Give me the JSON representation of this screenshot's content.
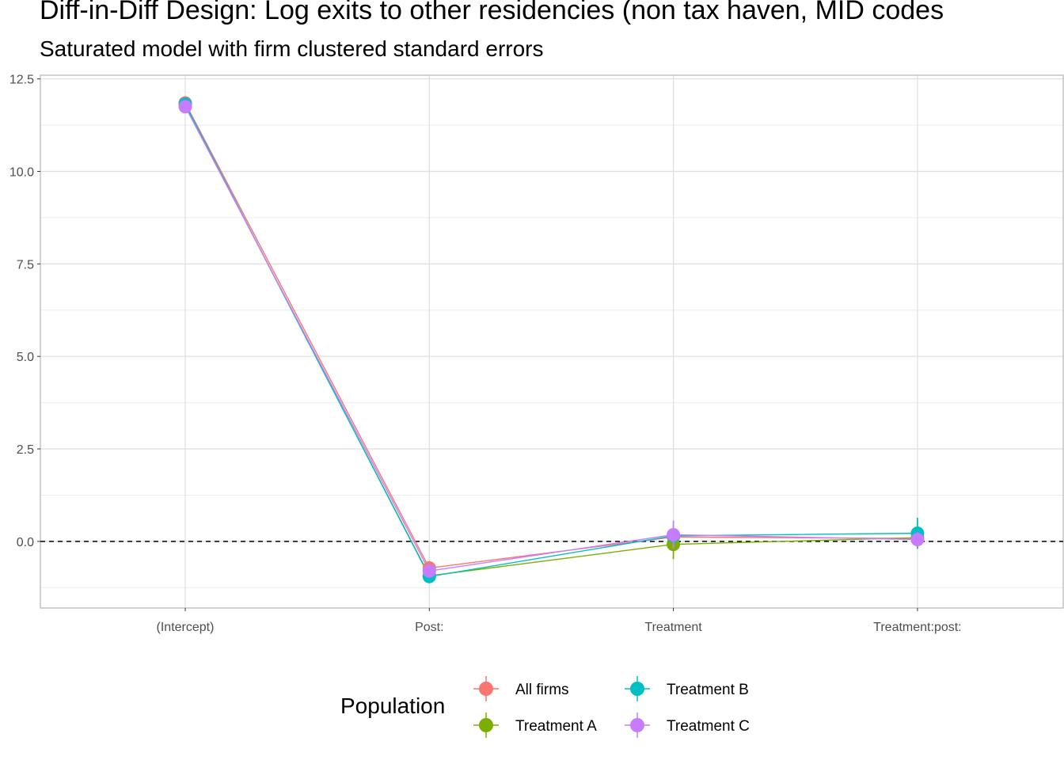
{
  "chart_data": {
    "type": "line",
    "title": "Diff-in-Diff Design: Log exits to other residencies (non tax haven, MID codes",
    "subtitle": "Saturated model with firm clustered standard errors",
    "categories": [
      "(Intercept)",
      "Post:",
      "Treatment",
      "Treatment:post:"
    ],
    "y_ticks": [
      "0.0",
      "2.5",
      "5.0",
      "7.5",
      "10.0",
      "12.5"
    ],
    "ylim": [
      -1.8,
      12.6
    ],
    "reference_line": {
      "y": 0,
      "style": "dashed"
    },
    "grid": true,
    "legend_title": "Population",
    "legend_position": "bottom",
    "series": [
      {
        "name": "All firms",
        "color": "#F8766D",
        "values": [
          11.85,
          -0.72,
          0.12,
          0.08
        ],
        "errors": [
          0.03,
          0.06,
          0.12,
          0.12
        ]
      },
      {
        "name": "Treatment A",
        "color": "#7CAE00",
        "values": [
          11.8,
          -0.93,
          -0.08,
          0.1
        ],
        "errors": [
          0.03,
          0.08,
          0.4,
          0.25
        ]
      },
      {
        "name": "Treatment B",
        "color": "#00BFC4",
        "values": [
          11.82,
          -0.95,
          0.15,
          0.22
        ],
        "errors": [
          0.03,
          0.08,
          0.15,
          0.42
        ]
      },
      {
        "name": "Treatment C",
        "color": "#C77CFF",
        "values": [
          11.75,
          -0.8,
          0.18,
          0.05
        ],
        "errors": [
          0.03,
          0.06,
          0.38,
          0.2
        ]
      }
    ]
  }
}
